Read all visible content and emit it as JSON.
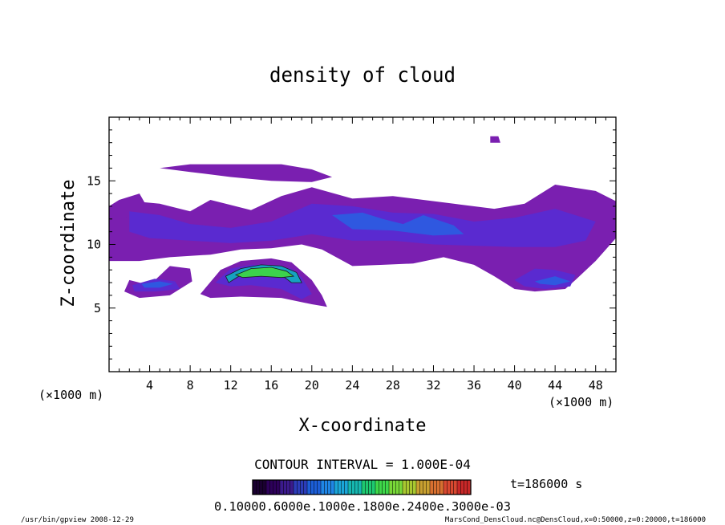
{
  "chart_data": {
    "type": "heatmap",
    "title": "density of cloud",
    "xlabel": "X-coordinate",
    "ylabel": "Z-coordinate",
    "x_unit_left": "(×1000 m)",
    "x_unit_right": "(×1000 m)",
    "xlim": [
      0,
      50
    ],
    "ylim": [
      0,
      20
    ],
    "x_ticks": [
      4,
      8,
      12,
      16,
      20,
      24,
      28,
      32,
      36,
      40,
      44,
      48
    ],
    "y_ticks": [
      5,
      10,
      15
    ],
    "contour_interval_text": "CONTOUR INTERVAL = 1.000E-04",
    "time_text": "t=186000 s",
    "colorbar_labels_text": "0.10000.6000e.1000e.1800e.2400e.3000e-03",
    "grid": false,
    "cloud_regions": [
      {
        "level": 1,
        "points": [
          [
            1,
            13.5
          ],
          [
            5,
            13.2
          ],
          [
            8,
            12.6
          ],
          [
            10,
            13.5
          ],
          [
            14,
            12.7
          ],
          [
            17,
            13.8
          ],
          [
            20,
            14.5
          ],
          [
            24,
            13.6
          ],
          [
            28,
            13.8
          ],
          [
            31,
            13.5
          ],
          [
            34,
            13.2
          ],
          [
            38,
            12.8
          ],
          [
            41,
            13.2
          ],
          [
            44,
            14.7
          ],
          [
            48,
            14.2
          ],
          [
            50,
            13.4
          ],
          [
            50,
            10.5
          ],
          [
            48,
            8.7
          ],
          [
            46,
            7.2
          ],
          [
            45,
            6.5
          ],
          [
            42,
            6.3
          ],
          [
            40,
            6.5
          ],
          [
            38,
            7.5
          ],
          [
            36,
            8.4
          ],
          [
            33,
            9.0
          ],
          [
            30,
            8.5
          ],
          [
            27,
            8.4
          ],
          [
            24,
            8.3
          ],
          [
            21,
            9.6
          ],
          [
            19,
            10.0
          ],
          [
            16,
            9.7
          ],
          [
            13,
            9.6
          ],
          [
            10,
            9.2
          ],
          [
            6,
            9.0
          ],
          [
            3,
            8.7
          ],
          [
            0,
            8.7
          ],
          [
            0,
            13.0
          ]
        ]
      },
      {
        "level": 1,
        "points": [
          [
            4,
            6.8
          ],
          [
            6,
            8.3
          ],
          [
            8,
            8.1
          ],
          [
            8.2,
            7.1
          ],
          [
            6,
            6.0
          ],
          [
            3,
            5.8
          ],
          [
            1.5,
            6.3
          ],
          [
            2,
            7.2
          ]
        ]
      },
      {
        "level": 1,
        "points": [
          [
            9,
            6.1
          ],
          [
            11,
            8.0
          ],
          [
            13,
            8.7
          ],
          [
            16,
            8.9
          ],
          [
            18,
            8.6
          ],
          [
            20,
            7.2
          ],
          [
            21,
            6.0
          ],
          [
            21.5,
            5.1
          ],
          [
            20,
            5.3
          ],
          [
            17,
            5.8
          ],
          [
            13,
            5.9
          ],
          [
            10,
            5.8
          ]
        ]
      },
      {
        "level": 1,
        "points": [
          [
            5,
            16.0
          ],
          [
            8,
            16.3
          ],
          [
            11,
            16.3
          ],
          [
            14,
            16.3
          ],
          [
            17,
            16.3
          ],
          [
            20,
            15.9
          ],
          [
            22,
            15.3
          ],
          [
            20,
            14.9
          ],
          [
            16,
            15.0
          ],
          [
            12,
            15.3
          ],
          [
            8,
            15.7
          ]
        ]
      },
      {
        "level": 1,
        "points": [
          [
            1,
            13.5
          ],
          [
            3,
            14.0
          ],
          [
            4,
            12.6
          ],
          [
            1,
            12.0
          ]
        ]
      },
      {
        "level": 1,
        "points": [
          [
            37.6,
            18.5
          ],
          [
            38.4,
            18.5
          ],
          [
            38.6,
            18.0
          ],
          [
            37.6,
            18.0
          ]
        ]
      },
      {
        "level": 2,
        "points": [
          [
            2,
            12.6
          ],
          [
            5,
            12.3
          ],
          [
            8,
            11.6
          ],
          [
            12,
            11.3
          ],
          [
            16,
            11.8
          ],
          [
            20,
            13.2
          ],
          [
            24,
            13.0
          ],
          [
            28,
            12.5
          ],
          [
            32,
            12.4
          ],
          [
            36,
            11.8
          ],
          [
            40,
            12.1
          ],
          [
            44,
            12.8
          ],
          [
            48,
            11.8
          ],
          [
            47,
            10.3
          ],
          [
            44,
            9.8
          ],
          [
            40,
            9.8
          ],
          [
            36,
            9.9
          ],
          [
            32,
            10.0
          ],
          [
            28,
            10.3
          ],
          [
            24,
            10.3
          ],
          [
            20,
            10.8
          ],
          [
            16,
            10.3
          ],
          [
            12,
            10.1
          ],
          [
            8,
            10.3
          ],
          [
            4,
            10.5
          ],
          [
            2,
            11.0
          ]
        ]
      },
      {
        "level": 2,
        "points": [
          [
            2.3,
            6.8
          ],
          [
            4.5,
            7.3
          ],
          [
            6.5,
            7.1
          ],
          [
            7,
            6.5
          ],
          [
            4.5,
            6.3
          ],
          [
            2.5,
            6.3
          ]
        ]
      },
      {
        "level": 2,
        "points": [
          [
            10.5,
            7.0
          ],
          [
            12,
            8.1
          ],
          [
            14,
            8.4
          ],
          [
            16,
            8.4
          ],
          [
            18,
            8.1
          ],
          [
            19,
            7.4
          ],
          [
            20,
            6.1
          ],
          [
            19,
            5.7
          ],
          [
            17,
            6.5
          ],
          [
            14,
            6.8
          ],
          [
            12,
            6.7
          ]
        ]
      },
      {
        "level": 2,
        "points": [
          [
            40,
            7.2
          ],
          [
            42,
            8.1
          ],
          [
            44,
            8.0
          ],
          [
            46,
            7.6
          ],
          [
            45.5,
            6.7
          ],
          [
            43,
            6.5
          ],
          [
            41,
            6.7
          ]
        ]
      },
      {
        "level": 3,
        "points": [
          [
            22,
            12.3
          ],
          [
            25,
            12.5
          ],
          [
            27,
            12.0
          ],
          [
            29,
            11.6
          ],
          [
            31,
            12.3
          ],
          [
            34,
            11.5
          ],
          [
            35,
            10.8
          ],
          [
            32,
            10.7
          ],
          [
            28,
            11.1
          ],
          [
            24,
            11.2
          ]
        ]
      },
      {
        "level": 3,
        "points": [
          [
            3.2,
            6.9
          ],
          [
            5,
            7.1
          ],
          [
            6.3,
            6.9
          ],
          [
            5,
            6.6
          ],
          [
            3.5,
            6.6
          ]
        ]
      },
      {
        "level": 3,
        "points": [
          [
            42,
            7.1
          ],
          [
            44,
            7.5
          ],
          [
            45.5,
            7.1
          ],
          [
            44,
            6.8
          ],
          [
            42.5,
            6.9
          ]
        ]
      },
      {
        "level": 4,
        "points": [
          [
            11.5,
            7.5
          ],
          [
            13,
            8.1
          ],
          [
            15,
            8.4
          ],
          [
            17,
            8.3
          ],
          [
            18.5,
            7.8
          ],
          [
            19,
            7.0
          ],
          [
            18,
            7.0
          ],
          [
            17,
            7.6
          ],
          [
            15,
            7.7
          ],
          [
            13,
            7.6
          ],
          [
            11.8,
            7.0
          ]
        ]
      },
      {
        "level": 5,
        "points": [
          [
            12.5,
            7.6
          ],
          [
            14,
            8.1
          ],
          [
            16,
            8.2
          ],
          [
            17.5,
            7.9
          ],
          [
            18.2,
            7.5
          ],
          [
            17,
            7.4
          ],
          [
            15,
            7.5
          ],
          [
            13.2,
            7.4
          ]
        ]
      }
    ],
    "colorbar_colors": [
      "#1a0030",
      "#2d005a",
      "#3b1a8c",
      "#2c3cb8",
      "#1c5ed8",
      "#1f86e6",
      "#1aa6d8",
      "#16b6b0",
      "#1ec870",
      "#3ed84a",
      "#78d838",
      "#a8c830",
      "#c8a030",
      "#d87030",
      "#d84830",
      "#c82828"
    ],
    "level_colors": [
      "#7a1fb0",
      "#5a2ad0",
      "#2f58e0",
      "#16a2c0",
      "#3cd24c"
    ]
  },
  "footer": {
    "left": "/usr/bin/gpview  2008-12-29",
    "right": "MarsCond_DensCloud.nc@DensCloud,x=0:50000,z=0:20000,t=186000"
  }
}
